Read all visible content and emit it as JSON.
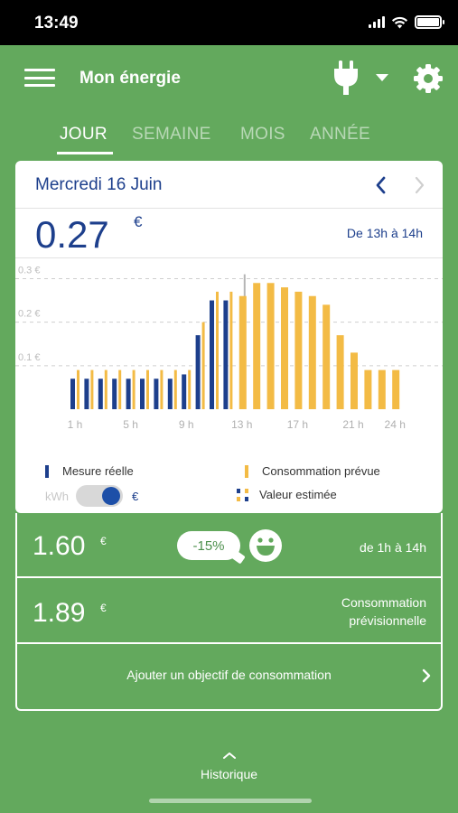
{
  "status_bar": {
    "time": "13:49"
  },
  "header": {
    "title": "Mon énergie",
    "menu_icon": "hamburger-icon",
    "meter_icon": "plug-icon",
    "settings_icon": "gear-icon"
  },
  "tabs": [
    {
      "label": "JOUR",
      "active": true
    },
    {
      "label": "SEMAINE",
      "active": false
    },
    {
      "label": "MOIS",
      "active": false
    },
    {
      "label": "ANNÉE",
      "active": false
    }
  ],
  "day_card": {
    "date": "Mercredi 16 Juin",
    "value": "0.27",
    "currency": "€",
    "range": "De 13h à 14h"
  },
  "chart_data": {
    "type": "bar",
    "y_tick_labels": [
      "0.3 €",
      "0.2 €",
      "0.1 €"
    ],
    "y_ticks": [
      0.3,
      0.2,
      0.1
    ],
    "ylim": [
      0,
      0.33
    ],
    "x_tick_labels": [
      "1 h",
      "5 h",
      "9 h",
      "13 h",
      "17 h",
      "21 h",
      "24 h"
    ],
    "x_tick_hours": [
      1,
      5,
      9,
      13,
      17,
      21,
      24
    ],
    "hours": [
      1,
      2,
      3,
      4,
      5,
      6,
      7,
      8,
      9,
      10,
      11,
      12,
      13,
      14,
      15,
      16,
      17,
      18,
      19,
      20,
      21,
      22,
      23,
      24
    ],
    "selected_hour": 13,
    "series": [
      {
        "name": "Mesure réelle",
        "color": "#1d3f8c",
        "values": [
          0.07,
          0.07,
          0.07,
          0.07,
          0.07,
          0.07,
          0.07,
          0.07,
          0.08,
          0.17,
          0.25,
          0.25
        ]
      },
      {
        "name": "Consommation prévue",
        "color": "#f3bb45",
        "values": [
          0.09,
          0.09,
          0.09,
          0.09,
          0.09,
          0.09,
          0.09,
          0.09,
          0.09,
          0.2,
          0.27,
          0.27,
          0.26,
          0.29,
          0.29,
          0.28,
          0.27,
          0.26,
          0.24,
          0.17,
          0.13,
          0.09,
          0.09,
          0.09
        ]
      }
    ]
  },
  "legend": {
    "measured": "Mesure réelle",
    "forecast": "Consommation prévue",
    "estimated": "Valeur estimée",
    "unit_kwh": "kWh",
    "unit_eur": "€",
    "unit_selected": "€"
  },
  "summary": {
    "actual_value": "1.60",
    "actual_currency": "€",
    "comparison": "-15%",
    "actual_range": "de 1h à 14h",
    "forecast_value": "1.89",
    "forecast_currency": "€",
    "forecast_caption_line1": "Consommation",
    "forecast_caption_line2": "prévisionnelle"
  },
  "goal": {
    "label": "Ajouter un objectif de consommation"
  },
  "footer": {
    "history_label": "Historique"
  }
}
